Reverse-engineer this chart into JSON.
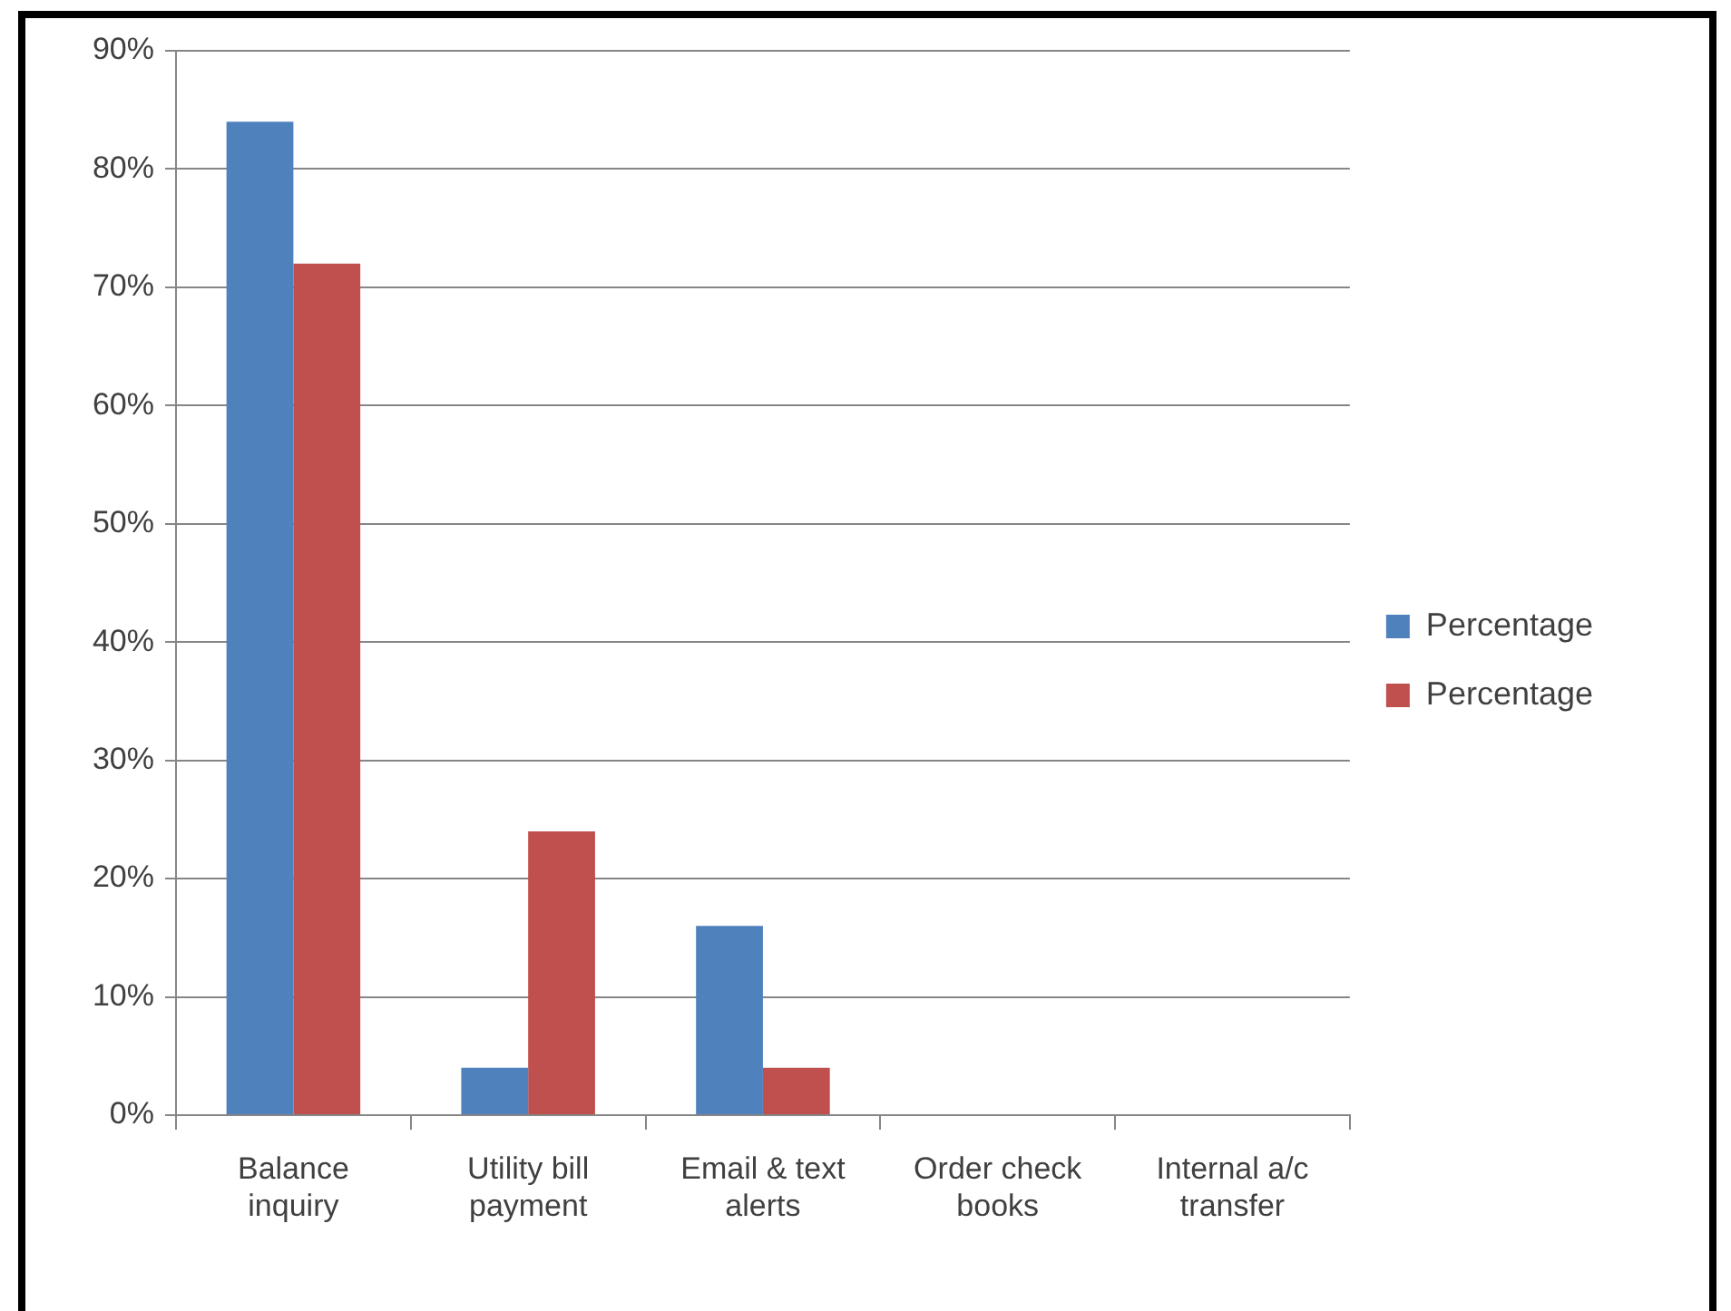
{
  "chart_data": {
    "type": "bar",
    "categories": [
      "Balance inquiry",
      "Utility bill payment",
      "Email & text alerts",
      "Order check books",
      "Internal a/c transfer"
    ],
    "series": [
      {
        "name": "Percentage",
        "color": "#4f81bd",
        "values": [
          84,
          4,
          16,
          0,
          0
        ]
      },
      {
        "name": "Percentage",
        "color": "#c0504d",
        "values": [
          72,
          24,
          4,
          0,
          0
        ]
      }
    ],
    "ylim": [
      0,
      90
    ],
    "yticks": [
      {
        "value": 0,
        "label": "0%"
      },
      {
        "value": 10,
        "label": "10%"
      },
      {
        "value": 20,
        "label": "20%"
      },
      {
        "value": 30,
        "label": "30%"
      },
      {
        "value": 40,
        "label": "40%"
      },
      {
        "value": 50,
        "label": "50%"
      },
      {
        "value": 60,
        "label": "60%"
      },
      {
        "value": 70,
        "label": "70%"
      },
      {
        "value": 80,
        "label": "80%"
      },
      {
        "value": 90,
        "label": "90%"
      }
    ],
    "grid": "y",
    "legend": "right"
  }
}
